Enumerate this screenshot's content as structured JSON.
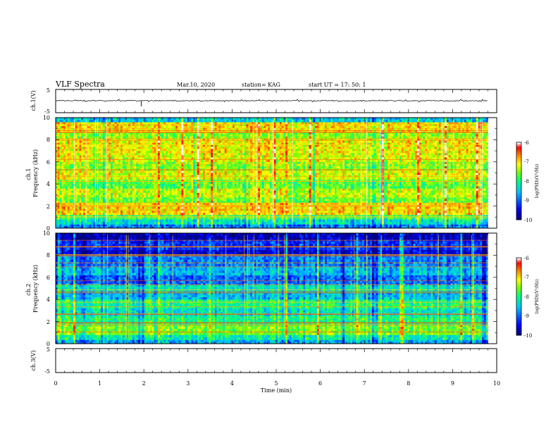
{
  "header": {
    "title": "VLF Spectra",
    "date": "Mar.10, 2020",
    "station": "station= KAG",
    "start_ut": "start  UT =   17: 50: 1"
  },
  "chart_data": [
    {
      "type": "line",
      "name": "ch1-waveform",
      "ylabel": "ch.1(V)",
      "ylim": [
        -5,
        5
      ],
      "yticks": [
        "5",
        "-5"
      ],
      "xlim": [
        0,
        10
      ],
      "note": "near-flat waveform around 0 V with small spikes, one dip near 1.9 min"
    },
    {
      "type": "heatmap",
      "name": "ch1-spectrogram",
      "ylabel": "ch.1\nFrequency (kHz)",
      "ylim": [
        0,
        10
      ],
      "yticks": [
        "0",
        "2",
        "4",
        "6",
        "8",
        "10"
      ],
      "xlim": [
        0,
        10
      ],
      "data_end_min": 9.8,
      "colorbar": {
        "label": "log(PSD)(V²/Hz)",
        "range": [
          -10,
          -6
        ],
        "ticks": [
          "-6",
          "-7",
          "-8",
          "-9",
          "-10"
        ]
      },
      "band_levels": [
        {
          "f0": 0.0,
          "f1": 0.35,
          "v": -8.9
        },
        {
          "f0": 0.35,
          "f1": 0.8,
          "v": -8.3
        },
        {
          "f0": 0.8,
          "f1": 1.2,
          "v": -7.9
        },
        {
          "f0": 1.2,
          "f1": 2.3,
          "v": -7.0
        },
        {
          "f0": 2.3,
          "f1": 2.8,
          "v": -7.6
        },
        {
          "f0": 2.8,
          "f1": 3.6,
          "v": -7.3
        },
        {
          "f0": 3.6,
          "f1": 4.4,
          "v": -7.7
        },
        {
          "f0": 4.4,
          "f1": 5.2,
          "v": -7.2
        },
        {
          "f0": 5.2,
          "f1": 6.0,
          "v": -7.5
        },
        {
          "f0": 6.0,
          "f1": 6.8,
          "v": -7.2
        },
        {
          "f0": 6.8,
          "f1": 8.1,
          "v": -7.1
        },
        {
          "f0": 8.1,
          "f1": 8.7,
          "v": -7.5
        },
        {
          "f0": 8.7,
          "f1": 9.6,
          "v": -7.0
        },
        {
          "f0": 9.6,
          "f1": 10.0,
          "v": -8.5
        }
      ]
    },
    {
      "type": "heatmap",
      "name": "ch2-spectrogram",
      "ylabel": "ch.2\nFrequency (kHz)",
      "ylim": [
        0,
        10
      ],
      "yticks": [
        "0",
        "2",
        "4",
        "6",
        "8",
        "10"
      ],
      "xlim": [
        0,
        10
      ],
      "data_end_min": 9.8,
      "colorbar": {
        "label": "log(PSD)(V²/Hz)",
        "range": [
          -10,
          -6
        ],
        "ticks": [
          "-6",
          "-7",
          "-8",
          "-9",
          "-10"
        ]
      },
      "band_levels": [
        {
          "f0": 0.0,
          "f1": 0.35,
          "v": -8.7
        },
        {
          "f0": 0.35,
          "f1": 0.8,
          "v": -8.2
        },
        {
          "f0": 0.8,
          "f1": 1.7,
          "v": -7.6
        },
        {
          "f0": 1.7,
          "f1": 2.5,
          "v": -8.0
        },
        {
          "f0": 2.5,
          "f1": 3.2,
          "v": -8.3
        },
        {
          "f0": 3.2,
          "f1": 4.0,
          "v": -8.0
        },
        {
          "f0": 4.0,
          "f1": 4.6,
          "v": -8.6
        },
        {
          "f0": 4.6,
          "f1": 5.3,
          "v": -8.3
        },
        {
          "f0": 5.3,
          "f1": 6.2,
          "v": -9.0
        },
        {
          "f0": 6.2,
          "f1": 7.0,
          "v": -8.6
        },
        {
          "f0": 7.0,
          "f1": 8.0,
          "v": -8.9
        },
        {
          "f0": 8.0,
          "f1": 8.5,
          "v": -9.6
        },
        {
          "f0": 8.5,
          "f1": 9.4,
          "v": -9.3
        },
        {
          "f0": 9.4,
          "f1": 10.0,
          "v": -9.8
        }
      ]
    },
    {
      "type": "line",
      "name": "ch3-waveform",
      "ylabel": "ch.3(V)",
      "ylim": [
        -5,
        5
      ],
      "yticks": [
        "5",
        "-5"
      ],
      "xlim": [
        0,
        10
      ],
      "note": "no signal shown"
    }
  ],
  "xaxis": {
    "label": "Time  (min)",
    "ticks": [
      "0",
      "1",
      "2",
      "3",
      "4",
      "5",
      "6",
      "7",
      "8",
      "9",
      "10"
    ]
  },
  "colors": {
    "axis": "#000000",
    "colormap": [
      "#000080",
      "#0000ff",
      "#00bfff",
      "#00ff80",
      "#80ff00",
      "#ffff00",
      "#ff8000",
      "#ff0000",
      "#ffffff"
    ]
  }
}
